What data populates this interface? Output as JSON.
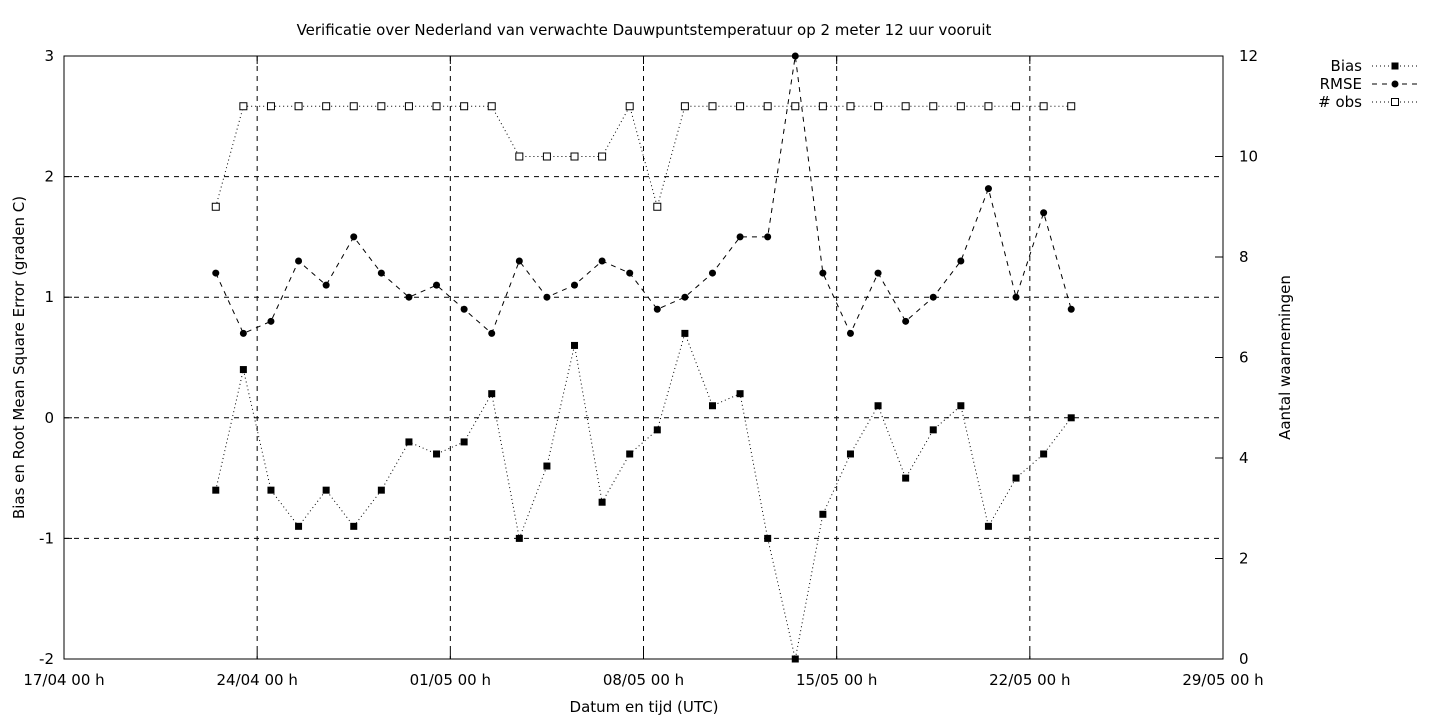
{
  "chart_data": {
    "type": "line",
    "title": "Verificatie over Nederland van verwachte Dauwpuntstemperatuur op 2 meter 12 uur vooruit",
    "xlabel": "Datum en tijd (UTC)",
    "ylabel": "Bias en Root Mean Square Error (graden C)",
    "y2label": "Aantal waarnemingen",
    "x_ticks": [
      "17/04 00 h",
      "24/04 00 h",
      "01/05 00 h",
      "08/05 00 h",
      "15/05 00 h",
      "22/05 00 h",
      "29/05 00 h"
    ],
    "y_ticks": [
      "-2",
      "-1",
      "0",
      "1",
      "2",
      "3"
    ],
    "y2_ticks": [
      "0",
      "2",
      "4",
      "6",
      "8",
      "10",
      "12"
    ],
    "xlim_days_from_17_04": [
      0,
      42
    ],
    "ylim": [
      -2,
      3
    ],
    "y2lim": [
      0,
      12
    ],
    "grid": true,
    "legend_position": "top-right outside plot",
    "x": [
      "22/04 12 h",
      "23/04 12 h",
      "24/04 12 h",
      "25/04 12 h",
      "26/04 12 h",
      "27/04 12 h",
      "28/04 12 h",
      "29/04 12 h",
      "30/04 12 h",
      "01/05 12 h",
      "02/05 12 h",
      "03/05 12 h",
      "04/05 12 h",
      "05/05 12 h",
      "06/05 12 h",
      "07/05 12 h",
      "08/05 12 h",
      "09/05 12 h",
      "10/05 12 h",
      "11/05 12 h",
      "12/05 12 h",
      "13/05 12 h",
      "14/05 12 h",
      "15/05 12 h",
      "16/05 12 h",
      "17/05 12 h",
      "18/05 12 h",
      "19/05 12 h",
      "20/05 12 h",
      "21/05 12 h",
      "22/05 12 h",
      "23/05 12 h"
    ],
    "x_days": [
      5.5,
      6.5,
      7.5,
      8.5,
      9.5,
      10.5,
      11.5,
      12.5,
      13.5,
      14.5,
      15.5,
      16.5,
      17.5,
      18.5,
      19.5,
      20.5,
      21.5,
      22.5,
      23.5,
      24.5,
      25.5,
      26.5,
      27.5,
      28.5,
      29.5,
      30.5,
      31.5,
      32.5,
      33.5,
      34.5,
      35.5,
      36.5
    ],
    "series": [
      {
        "name": "Bias",
        "axis": "left",
        "marker": "filled-square",
        "line": "dotted",
        "values": [
          -0.6,
          0.4,
          -0.6,
          -0.9,
          -0.6,
          -0.9,
          -0.6,
          -0.2,
          -0.3,
          -0.2,
          0.2,
          -1.0,
          -0.4,
          0.6,
          -0.7,
          -0.3,
          -0.1,
          0.7,
          0.1,
          0.2,
          -1.0,
          -2.0,
          -0.8,
          -0.3,
          0.1,
          -0.5,
          -0.1,
          0.1,
          -0.9,
          -0.5,
          -0.3,
          0.0
        ]
      },
      {
        "name": "RMSE",
        "axis": "left",
        "marker": "filled-circle",
        "line": "dashed",
        "values": [
          1.2,
          0.7,
          0.8,
          1.3,
          1.1,
          1.5,
          1.2,
          1.0,
          1.1,
          0.9,
          0.7,
          1.3,
          1.0,
          1.1,
          1.3,
          1.2,
          0.9,
          1.0,
          1.2,
          1.5,
          1.5,
          3.0,
          1.2,
          0.7,
          1.2,
          0.8,
          1.0,
          1.3,
          1.9,
          1.0,
          1.7,
          0.9
        ]
      },
      {
        "name": "# obs",
        "axis": "right",
        "marker": "open-square",
        "line": "dotted",
        "values": [
          9,
          11,
          11,
          11,
          11,
          11,
          11,
          11,
          11,
          11,
          11,
          10,
          10,
          10,
          10,
          11,
          9,
          11,
          11,
          11,
          11,
          11,
          11,
          11,
          11,
          11,
          11,
          11,
          11,
          11,
          11,
          11
        ]
      }
    ]
  }
}
